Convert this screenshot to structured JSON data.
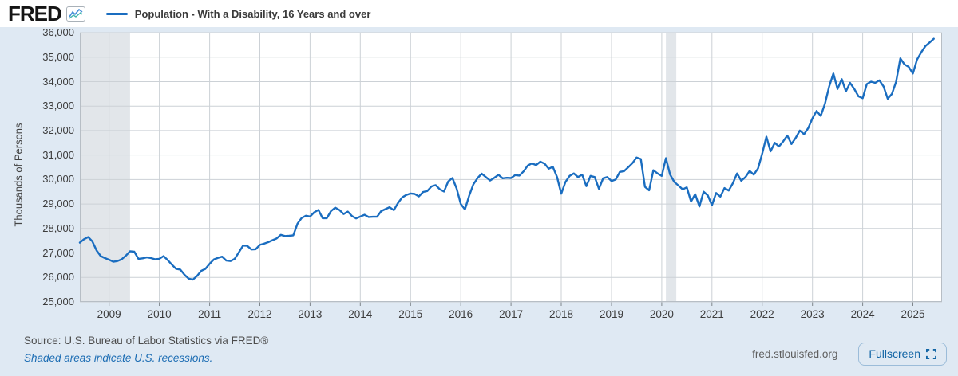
{
  "header": {
    "logo_text": "FRED",
    "series_legend": "Population - With a Disability, 16 Years and over"
  },
  "chart_data": {
    "type": "line",
    "title": "Population - With a Disability, 16 Years and over",
    "ylabel": "Thousands of Persons",
    "frequency": "monthly",
    "ylim": [
      25000,
      36000
    ],
    "ytick_step": 1000,
    "yticks": [
      25000,
      26000,
      27000,
      28000,
      29000,
      30000,
      31000,
      32000,
      33000,
      34000,
      35000,
      36000
    ],
    "ytick_labels": [
      "25,000",
      "26,000",
      "27,000",
      "28,000",
      "29,000",
      "30,000",
      "31,000",
      "32,000",
      "33,000",
      "34,000",
      "35,000",
      "36,000"
    ],
    "xticks": [
      2009,
      2010,
      2011,
      2012,
      2013,
      2014,
      2015,
      2016,
      2017,
      2018,
      2019,
      2020,
      2021,
      2022,
      2023,
      2024,
      2025
    ],
    "xtick_labels": [
      "2009",
      "2010",
      "2011",
      "2012",
      "2013",
      "2014",
      "2015",
      "2016",
      "2017",
      "2018",
      "2019",
      "2020",
      "2021",
      "2022",
      "2023",
      "2024",
      "2025"
    ],
    "x_domain": [
      2008.4167,
      2025.58
    ],
    "x_start": "2008-06",
    "x_end": "2025-06",
    "grid": true,
    "legend_position": "top-left",
    "line_color": "#1a6dc0",
    "recessions": [
      {
        "label": "2008-2009 recession",
        "start": 2008.4167,
        "end": 2009.4167
      },
      {
        "label": "2020 recession",
        "start": 2020.0833,
        "end": 2020.29
      }
    ],
    "series": [
      {
        "name": "Population - With a Disability, 16 Years and over",
        "start_year": 2008,
        "start_month": 6,
        "values": [
          27420,
          27560,
          27650,
          27470,
          27100,
          26870,
          26790,
          26720,
          26640,
          26670,
          26740,
          26890,
          27070,
          27050,
          26760,
          26780,
          26820,
          26790,
          26740,
          26760,
          26870,
          26710,
          26520,
          26350,
          26320,
          26110,
          25950,
          25910,
          26060,
          26270,
          26350,
          26560,
          26730,
          26800,
          26850,
          26690,
          26670,
          26760,
          27030,
          27300,
          27290,
          27140,
          27150,
          27330,
          27380,
          27440,
          27520,
          27590,
          27740,
          27690,
          27700,
          27720,
          28200,
          28430,
          28520,
          28490,
          28660,
          28760,
          28420,
          28420,
          28710,
          28850,
          28760,
          28590,
          28690,
          28510,
          28410,
          28490,
          28560,
          28470,
          28480,
          28480,
          28710,
          28790,
          28870,
          28750,
          29040,
          29270,
          29370,
          29430,
          29410,
          29310,
          29490,
          29530,
          29720,
          29770,
          29600,
          29510,
          29920,
          30060,
          29640,
          29000,
          28780,
          29340,
          29800,
          30060,
          30240,
          30100,
          29960,
          30070,
          30190,
          30050,
          30070,
          30060,
          30180,
          30160,
          30330,
          30570,
          30660,
          30590,
          30730,
          30650,
          30440,
          30520,
          30100,
          29420,
          29900,
          30150,
          30250,
          30100,
          30200,
          29730,
          30150,
          30100,
          29620,
          30050,
          30100,
          29940,
          30000,
          30310,
          30340,
          30500,
          30670,
          30900,
          30840,
          29700,
          29560,
          30380,
          30250,
          30150,
          30870,
          30200,
          29900,
          29750,
          29600,
          29680,
          29100,
          29400,
          28900,
          29500,
          29350,
          28950,
          29450,
          29300,
          29650,
          29550,
          29850,
          30250,
          29950,
          30100,
          30350,
          30200,
          30450,
          31050,
          31750,
          31150,
          31500,
          31350,
          31550,
          31800,
          31450,
          31700,
          32000,
          31850,
          32100,
          32500,
          32800,
          32600,
          33100,
          33800,
          34330,
          33700,
          34100,
          33600,
          33950,
          33700,
          33400,
          33320,
          33900,
          34000,
          33950,
          34050,
          33800,
          33300,
          33500,
          34000,
          34950,
          34700,
          34600,
          34330,
          34900,
          35200,
          35450,
          35600,
          35750
        ]
      }
    ]
  },
  "footer": {
    "source": "Source: U.S. Bureau of Labor Statistics via FRED®",
    "note": "Shaded areas indicate U.S. recessions.",
    "site": "fred.stlouisfed.org",
    "fullscreen_label": "Fullscreen"
  },
  "colors": {
    "page_bg": "#dfe9f3",
    "header_bg": "#ffffff",
    "plot_bg": "#ffffff",
    "grid": "#ccd1d6",
    "plot_border": "#b7bec5",
    "tick": "#7f868c",
    "recession_band": "#e2e6ea",
    "line": "#1a6dc0",
    "accent_blue": "#1b6cb3",
    "text_dark": "#3a3a3a",
    "text_gray": "#4c4c4c"
  }
}
